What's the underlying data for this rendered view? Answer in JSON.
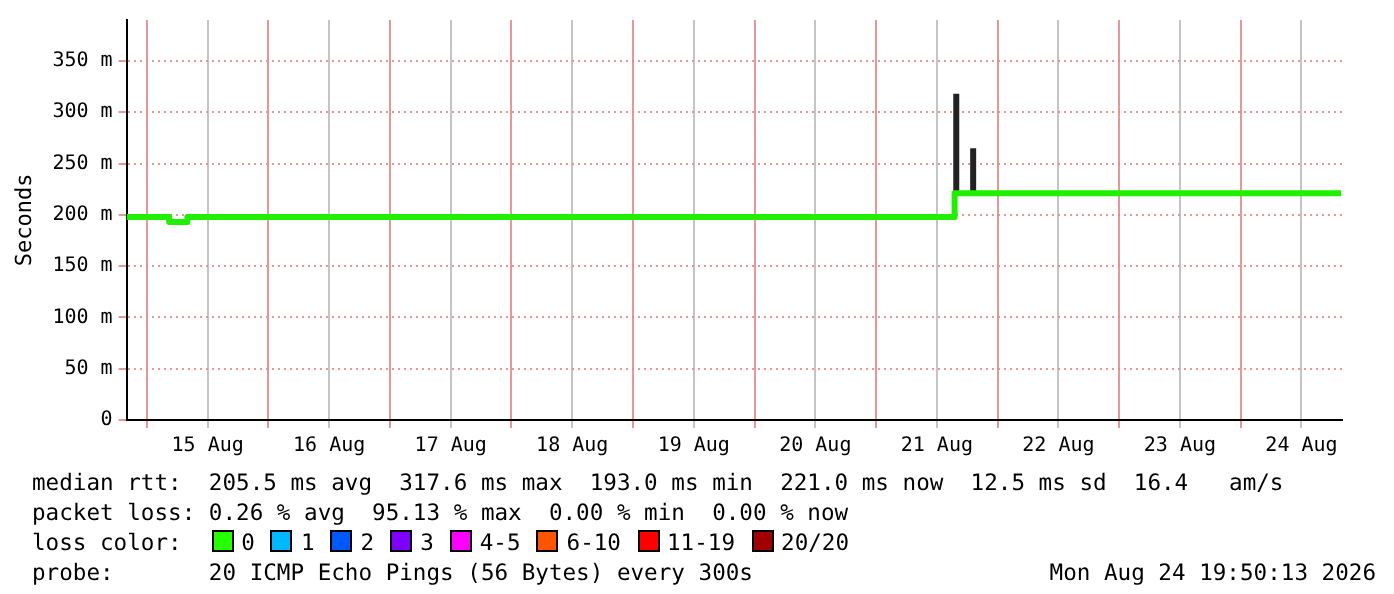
{
  "chart_data": {
    "type": "line",
    "ylabel": "Seconds",
    "xlim": [
      "2026-08-14T20:00",
      "2026-08-24T20:00"
    ],
    "xticks": [
      {
        "value": "2026-08-15T00:00",
        "label": null
      },
      {
        "value": "2026-08-15T12:00",
        "label": "15 Aug"
      },
      {
        "value": "2026-08-16T00:00",
        "label": null
      },
      {
        "value": "2026-08-16T12:00",
        "label": "16 Aug"
      },
      {
        "value": "2026-08-17T00:00",
        "label": null
      },
      {
        "value": "2026-08-17T12:00",
        "label": "17 Aug"
      },
      {
        "value": "2026-08-18T00:00",
        "label": null
      },
      {
        "value": "2026-08-18T12:00",
        "label": "18 Aug"
      },
      {
        "value": "2026-08-19T00:00",
        "label": null
      },
      {
        "value": "2026-08-19T12:00",
        "label": "19 Aug"
      },
      {
        "value": "2026-08-20T00:00",
        "label": null
      },
      {
        "value": "2026-08-20T12:00",
        "label": "20 Aug"
      },
      {
        "value": "2026-08-21T00:00",
        "label": null
      },
      {
        "value": "2026-08-21T12:00",
        "label": "21 Aug"
      },
      {
        "value": "2026-08-22T00:00",
        "label": null
      },
      {
        "value": "2026-08-22T12:00",
        "label": "22 Aug"
      },
      {
        "value": "2026-08-23T00:00",
        "label": null
      },
      {
        "value": "2026-08-23T12:00",
        "label": "23 Aug"
      },
      {
        "value": "2026-08-24T00:00",
        "label": null
      },
      {
        "value": "2026-08-24T12:00",
        "label": "24 Aug"
      }
    ],
    "ylim": [
      0,
      390
    ],
    "yticks": [
      0,
      {
        "value": 50,
        "label": "50 m"
      },
      {
        "value": 100,
        "label": "100 m"
      },
      {
        "value": 150,
        "label": "150 m"
      },
      {
        "value": 200,
        "label": "200 m"
      },
      {
        "value": 250,
        "label": "250 m"
      },
      {
        "value": 300,
        "label": "300 m"
      },
      {
        "value": 350,
        "label": "350 m"
      }
    ],
    "grid": true,
    "legend": false,
    "marker": "none",
    "series": [
      {
        "color": "#20f000",
        "x": [
          "2026-08-14T20:00",
          "2026-08-15T04:20",
          "2026-08-15T04:25",
          "2026-08-15T07:55",
          "2026-08-15T08:00",
          "2026-08-21T15:25",
          "2026-08-21T15:30",
          "2026-08-24T19:50"
        ],
        "values": [
          198,
          198,
          193,
          193,
          198,
          198,
          221,
          221
        ]
      },
      {
        "color": "#222222",
        "x": [
          "2026-08-21T15:50",
          "2026-08-21T15:50",
          "2026-08-21T16:00",
          "2026-08-21T19:10",
          "2026-08-21T19:10"
        ],
        "values": [
          221,
          318,
          null,
          221,
          265
        ]
      }
    ],
    "annotations": [
      "median rtt:  205.5 ms avg  317.6 ms max  193.0 ms min  221.0 ms now  12.5 ms sd  16.4   am/s",
      "packet loss: 0.26 % avg  95.13 % max  0.00 % min  0.00 % now",
      "loss color:",
      "0",
      "1",
      "2",
      "3",
      "4-5",
      "6-10",
      "11-19",
      "20/20",
      "probe:       20 ICMP Echo Pings (56 Bytes) every 300s",
      "Mon Aug 24 19:50:13 2026"
    ]
  }
}
